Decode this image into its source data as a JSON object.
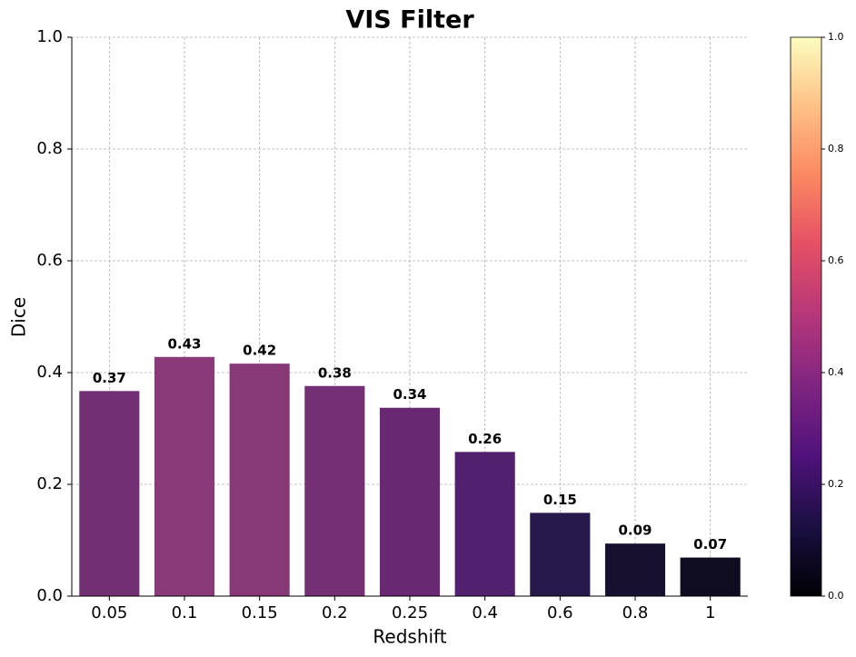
{
  "chart_data": {
    "type": "bar",
    "title": "VIS Filter",
    "x_label": "Redshift",
    "y_label": "Dice",
    "categories": [
      "0.05",
      "0.1",
      "0.15",
      "0.2",
      "0.25",
      "0.4",
      "0.6",
      "0.8",
      "1"
    ],
    "values": [
      0.367,
      0.428,
      0.416,
      0.376,
      0.337,
      0.258,
      0.149,
      0.094,
      0.069
    ],
    "value_labels": [
      "0.37",
      "0.43",
      "0.42",
      "0.38",
      "0.34",
      "0.26",
      "0.15",
      "0.09",
      "0.07"
    ],
    "colors": [
      "#732f74",
      "#8a3a78",
      "#873977",
      "#752f75",
      "#692872",
      "#51206f",
      "#261a4b",
      "#17112f",
      "#0f0c22"
    ],
    "ylim": [
      0,
      1
    ],
    "yticks": [
      {
        "value": 0,
        "label": "0.0"
      },
      {
        "value": 0.2,
        "label": "0.2"
      },
      {
        "value": 0.4,
        "label": "0.4"
      },
      {
        "value": 0.6,
        "label": "0.6"
      },
      {
        "value": 0.8,
        "label": "0.8"
      },
      {
        "value": 1,
        "label": "1.0"
      }
    ],
    "grid": true,
    "colorbar": {
      "ylim": [
        0,
        1
      ],
      "yticks": [
        {
          "value": 0,
          "label": "0.0"
        },
        {
          "value": 0.2,
          "label": "0.2"
        },
        {
          "value": 0.4,
          "label": "0.4"
        },
        {
          "value": 0.6,
          "label": "0.6"
        },
        {
          "value": 0.8,
          "label": "0.8"
        },
        {
          "value": 1,
          "label": "1.0"
        }
      ]
    }
  }
}
